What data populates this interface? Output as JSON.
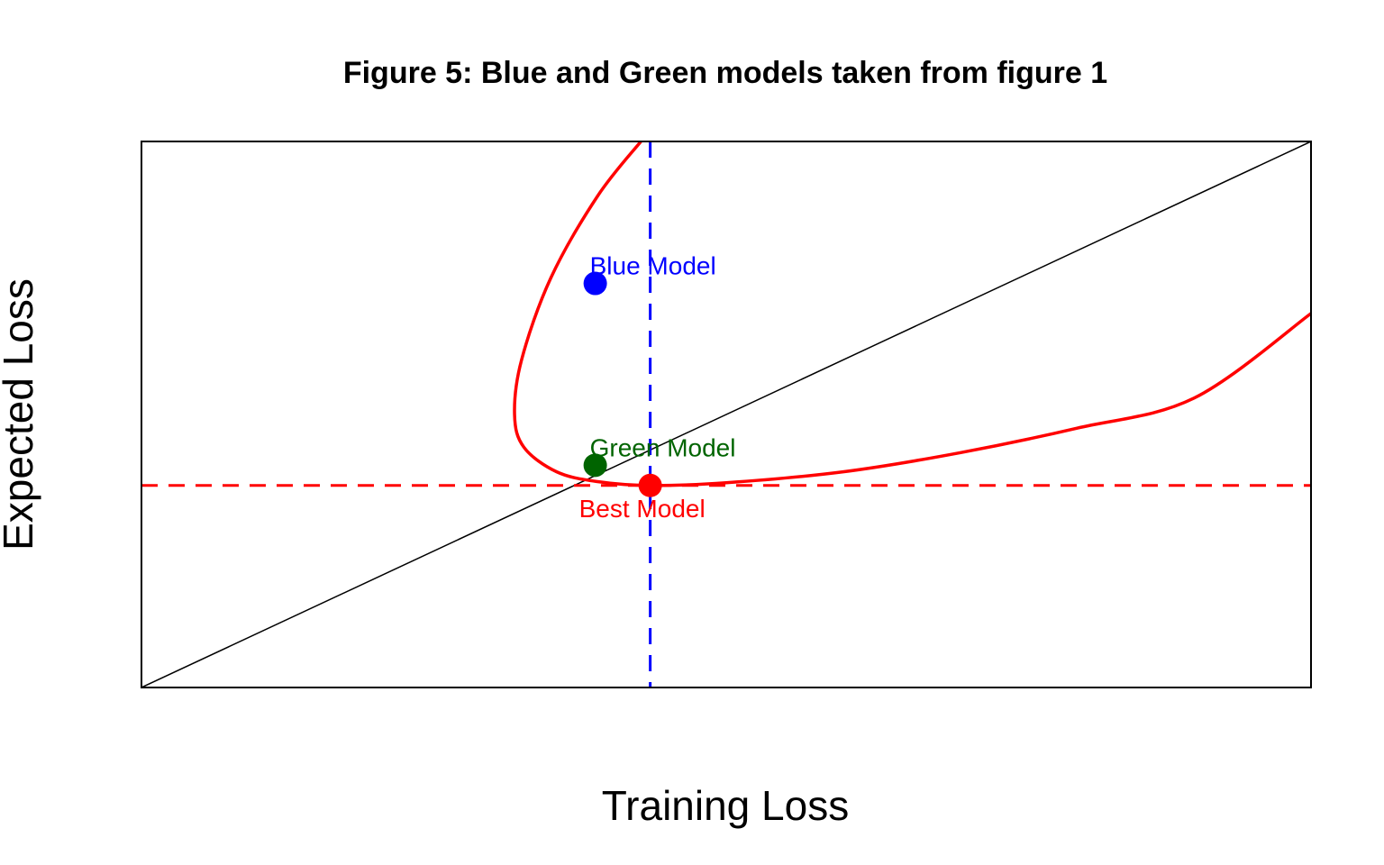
{
  "chart_data": {
    "type": "scatter",
    "title": "Figure 5: Blue and Green models taken from figure 1",
    "xlabel": "Training Loss",
    "ylabel": "Expected Loss",
    "xlim": [
      0,
      10
    ],
    "ylim": [
      0,
      10
    ],
    "xticks": [],
    "yticks": [],
    "grid": false,
    "reference_lines": [
      {
        "kind": "diagonal",
        "from": [
          0,
          0
        ],
        "to": [
          10,
          10
        ],
        "color": "#000000",
        "style": "solid"
      },
      {
        "kind": "horizontal",
        "y": 3.7,
        "color": "#ff0000",
        "style": "dashed"
      },
      {
        "kind": "vertical",
        "x": 4.35,
        "color": "#0000ff",
        "style": "dashed"
      }
    ],
    "curve": {
      "color": "#ff0000",
      "points": [
        [
          4.27,
          10.0
        ],
        [
          3.9,
          9.0
        ],
        [
          3.5,
          7.5
        ],
        [
          3.25,
          6.0
        ],
        [
          3.19,
          5.0
        ],
        [
          3.27,
          4.4
        ],
        [
          3.55,
          3.95
        ],
        [
          3.9,
          3.77
        ],
        [
          4.35,
          3.7
        ],
        [
          5.0,
          3.75
        ],
        [
          6.0,
          3.95
        ],
        [
          7.0,
          4.3
        ],
        [
          8.0,
          4.75
        ],
        [
          9.0,
          5.3
        ],
        [
          10.0,
          6.85
        ]
      ]
    },
    "points": [
      {
        "label": "Blue Model",
        "x": 3.88,
        "y": 7.4,
        "color": "#0000ff",
        "label_pos": "above"
      },
      {
        "label": "Green Model",
        "x": 3.88,
        "y": 4.07,
        "color": "#006400",
        "label_pos": "above"
      },
      {
        "label": "Best Model",
        "x": 4.35,
        "y": 3.7,
        "color": "#ff0000",
        "label_pos": "below"
      }
    ]
  }
}
